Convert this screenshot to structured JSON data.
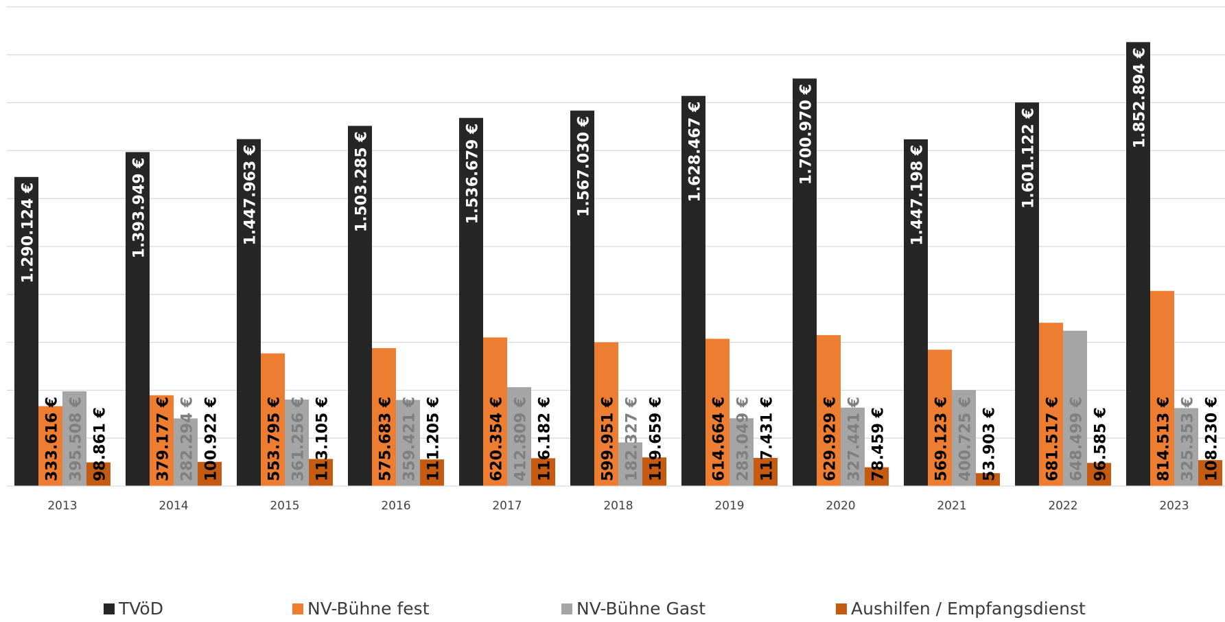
{
  "chart_data": {
    "type": "bar",
    "categories": [
      "2013",
      "2014",
      "2015",
      "2016",
      "2017",
      "2018",
      "2019",
      "2020",
      "2021",
      "2022",
      "2023"
    ],
    "series": [
      {
        "name": "TVöD",
        "color": "#262626",
        "values": [
          1290124,
          1393949,
          1447963,
          1503285,
          1536679,
          1567030,
          1628467,
          1700970,
          1447198,
          1601122,
          1852894
        ],
        "labels": [
          "1.290.124 €",
          "1.393.949 €",
          "1.447.963 €",
          "1.503.285 €",
          "1.536.679 €",
          "1.567.030 €",
          "1.628.467 €",
          "1.700.970 €",
          "1.447.198 €",
          "1.601.122 €",
          "1.852.894 €"
        ],
        "label_color": "#ffffff"
      },
      {
        "name": "NV-Bühne fest",
        "color": "#ED7D31",
        "values": [
          333616,
          379177,
          553795,
          575683,
          620354,
          599951,
          614664,
          629929,
          569123,
          681517,
          814513
        ],
        "labels": [
          "333.616 €",
          "379.177 €",
          "553.795 €",
          "575.683 €",
          "620.354 €",
          "599.951 €",
          "614.664 €",
          "629.929 €",
          "569.123 €",
          "681.517 €",
          "814.513 €"
        ],
        "label_color": "#000000"
      },
      {
        "name": "NV-Bühne Gast",
        "color": "#A5A5A5",
        "values": [
          395508,
          282294,
          361256,
          359421,
          412809,
          182327,
          283049,
          327441,
          400725,
          648499,
          325353
        ],
        "labels": [
          "395.508 €",
          "282.294 €",
          "361.256 €",
          "359.421 €",
          "412.809 €",
          "182.327 €",
          "283.049 €",
          "327.441 €",
          "400.725 €",
          "648.499 €",
          "325.353 €"
        ],
        "label_color": "#7f7f7f"
      },
      {
        "name": "Aushilfen / Empfangsdienst",
        "color": "#C55A11",
        "values": [
          98861,
          100922,
          113105,
          111205,
          116182,
          119659,
          117431,
          78459,
          53903,
          96585,
          108230
        ],
        "labels": [
          "98.861 €",
          "100.922 €",
          "113.105 €",
          "111.205 €",
          "116.182 €",
          "119.659 €",
          "117.431 €",
          "78.459 €",
          "53.903 €",
          "96.585 €",
          "108.230 €"
        ],
        "label_color": "#000000"
      }
    ],
    "ylim": [
      0,
      2000000
    ],
    "grid": true,
    "legend": "bottom"
  }
}
